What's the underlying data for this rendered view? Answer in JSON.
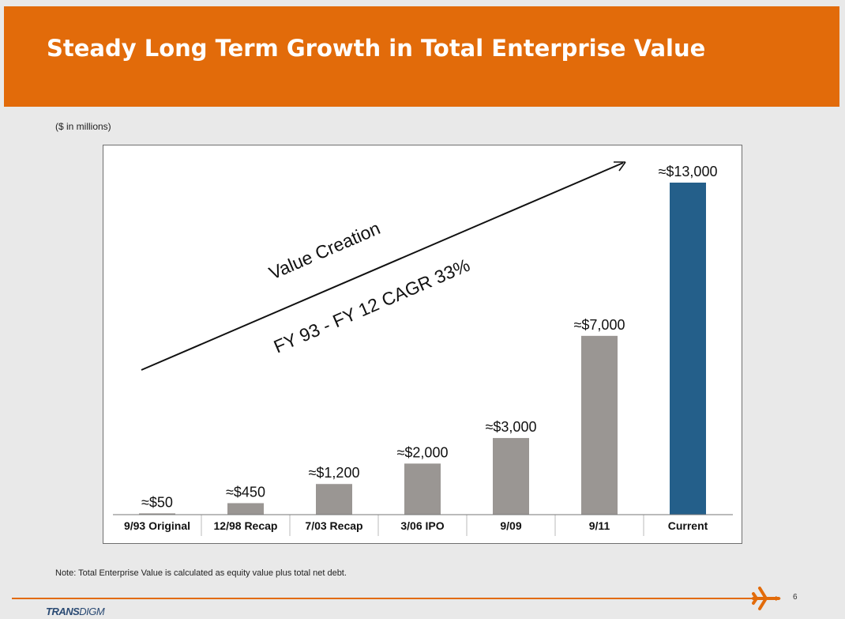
{
  "slide": {
    "title": "Steady Long Term Growth in Total Enterprise Value",
    "units_note": "($ in millions)",
    "footnote": "Note: Total Enterprise Value is calculated as equity value plus total net debt.",
    "page_number": "6",
    "logo_text_bold": "TRANS",
    "logo_text_rest": "DIGM"
  },
  "colors": {
    "accent": "#e26b0a",
    "bar_gray": "#9a9693",
    "bar_highlight": "#245f8a"
  },
  "chart_data": {
    "type": "bar",
    "categories": [
      "9/93 Original",
      "12/98 Recap",
      "7/03 Recap",
      "3/06 IPO",
      "9/09",
      "9/11",
      "Current"
    ],
    "values": [
      50,
      450,
      1200,
      2000,
      3000,
      7000,
      13000
    ],
    "data_labels": [
      "≈$50",
      "≈$450",
      "≈$1,200",
      "≈$2,000",
      "≈$3,000",
      "≈$7,000",
      "≈$13,000"
    ],
    "highlight_index": 6,
    "ylim": [
      0,
      14000
    ],
    "annotation_main": "Value Creation",
    "annotation_sub": "FY 93 - FY 12 CAGR  33%",
    "grid": false
  }
}
